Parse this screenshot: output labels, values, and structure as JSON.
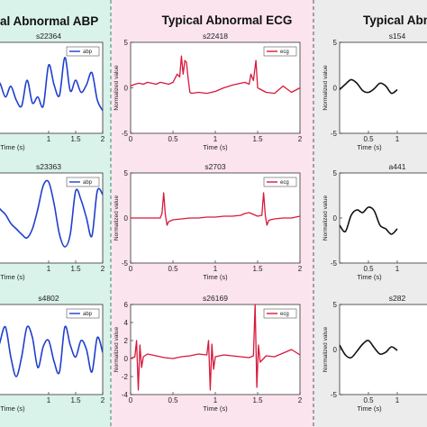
{
  "chart_data": [
    {
      "type": "line",
      "column": "abp",
      "column_title": "al Abnormal ABP",
      "title": "s22364",
      "xlabel": "Time (s)",
      "ylabel": "",
      "legend": "abp",
      "legend_position": "top-right",
      "xlim": [
        0,
        2
      ],
      "ylim": [
        -3,
        3
      ],
      "xticks": [
        "1",
        "1.5",
        "2"
      ],
      "yticks": [],
      "color": "#1f3fce",
      "series": [
        {
          "x": [
            0.0,
            0.1,
            0.2,
            0.3,
            0.4,
            0.5,
            0.6,
            0.7,
            0.8,
            0.9,
            1.0,
            1.1,
            1.2,
            1.3,
            1.4,
            1.5,
            1.6,
            1.7,
            1.8,
            1.9,
            2.0
          ],
          "y": [
            0.5,
            0.3,
            -0.6,
            0.1,
            -0.8,
            -1.2,
            0.5,
            -1.0,
            -0.6,
            -1.2,
            1.5,
            0.2,
            -0.5,
            2.0,
            -0.2,
            0.5,
            -0.3,
            0.2,
            1.0,
            -0.8,
            -1.5
          ]
        }
      ]
    },
    {
      "type": "line",
      "column": "abp",
      "title": "s23363",
      "xlabel": "Time (s)",
      "ylabel": "",
      "legend": "abp",
      "legend_position": "top-right",
      "xlim": [
        0,
        2
      ],
      "ylim": [
        -2.5,
        2.5
      ],
      "xticks": [
        "1",
        "1.5",
        "2"
      ],
      "yticks": [],
      "color": "#1f3fce",
      "series": [
        {
          "x": [
            0.0,
            0.1,
            0.2,
            0.3,
            0.4,
            0.5,
            0.6,
            0.7,
            0.8,
            0.9,
            1.0,
            1.1,
            1.2,
            1.3,
            1.4,
            1.5,
            1.6,
            1.7,
            1.8,
            1.9,
            2.0
          ],
          "y": [
            1.0,
            0.5,
            0.2,
            -0.3,
            -0.6,
            -0.9,
            -1.1,
            -0.6,
            0.5,
            1.8,
            2.0,
            0.8,
            -0.9,
            -1.6,
            -0.9,
            1.5,
            1.0,
            0.0,
            -1.0,
            1.5,
            1.3
          ]
        }
      ]
    },
    {
      "type": "line",
      "column": "abp",
      "title": "s4802",
      "xlabel": "Time (s)",
      "ylabel": "",
      "legend": "abp",
      "legend_position": "top-right",
      "xlim": [
        0,
        2
      ],
      "ylim": [
        -3,
        3
      ],
      "xticks": [
        "1",
        "1.5",
        "2"
      ],
      "yticks": [],
      "color": "#1f3fce",
      "series": [
        {
          "x": [
            0.0,
            0.1,
            0.2,
            0.3,
            0.4,
            0.5,
            0.6,
            0.7,
            0.8,
            0.9,
            1.0,
            1.1,
            1.2,
            1.3,
            1.4,
            1.5,
            1.6,
            1.7,
            1.8,
            1.9,
            2.0
          ],
          "y": [
            -1.0,
            0.5,
            1.5,
            -0.5,
            -1.8,
            -0.5,
            1.5,
            0.8,
            -1.2,
            0.2,
            0.6,
            -0.8,
            -1.5,
            1.5,
            0.3,
            -0.5,
            0.6,
            0.0,
            -1.5,
            0.8,
            -0.2
          ]
        }
      ]
    },
    {
      "type": "line",
      "column": "ecg",
      "column_title": "Typical Abnormal ECG",
      "title": "s22418",
      "xlabel": "Time (s)",
      "ylabel": "Normalized value",
      "legend": "ecg",
      "legend_position": "top-right",
      "xlim": [
        0,
        2
      ],
      "ylim": [
        -5,
        5
      ],
      "xticks": [
        "0",
        "0.5",
        "1",
        "1.5",
        "2"
      ],
      "yticks": [
        "-5",
        "0",
        "5"
      ],
      "color": "#d8183a",
      "series": [
        {
          "x": [
            0.0,
            0.05,
            0.1,
            0.15,
            0.2,
            0.25,
            0.3,
            0.35,
            0.4,
            0.45,
            0.5,
            0.55,
            0.58,
            0.6,
            0.62,
            0.64,
            0.66,
            0.68,
            0.7,
            0.72,
            0.8,
            0.9,
            1.0,
            1.1,
            1.2,
            1.3,
            1.35,
            1.4,
            1.42,
            1.45,
            1.48,
            1.5,
            1.6,
            1.7,
            1.8,
            1.9,
            2.0
          ],
          "y": [
            0.2,
            0.4,
            0.5,
            0.4,
            0.6,
            0.5,
            0.4,
            0.6,
            0.5,
            0.4,
            0.6,
            1.5,
            1.2,
            3.5,
            1.5,
            3.0,
            2.8,
            1.0,
            -0.5,
            -0.6,
            -0.5,
            -0.6,
            -0.4,
            0.0,
            0.3,
            0.5,
            0.6,
            0.4,
            1.5,
            0.8,
            3.0,
            0.0,
            -0.5,
            -0.6,
            0.2,
            -0.5,
            0.0
          ]
        }
      ]
    },
    {
      "type": "line",
      "column": "ecg",
      "title": "s2703",
      "xlabel": "Time (s)",
      "ylabel": "Normalized value",
      "legend": "ecg",
      "legend_position": "top-right",
      "xlim": [
        0,
        2
      ],
      "ylim": [
        -5,
        5
      ],
      "xticks": [
        "0",
        "0.5",
        "1",
        "1.5",
        "2"
      ],
      "yticks": [
        "-5",
        "0",
        "5"
      ],
      "color": "#d8183a",
      "series": [
        {
          "x": [
            0.0,
            0.2,
            0.35,
            0.37,
            0.39,
            0.41,
            0.43,
            0.45,
            0.5,
            0.6,
            0.7,
            0.8,
            0.9,
            1.0,
            1.1,
            1.2,
            1.3,
            1.35,
            1.4,
            1.45,
            1.5,
            1.55,
            1.57,
            1.59,
            1.61,
            1.63,
            1.65,
            1.7,
            1.8,
            1.9,
            2.0
          ],
          "y": [
            0.0,
            0.0,
            0.0,
            0.5,
            2.8,
            0.4,
            -0.8,
            -0.4,
            -0.2,
            -0.1,
            0.0,
            0.0,
            0.1,
            0.1,
            0.2,
            0.2,
            0.3,
            0.5,
            0.6,
            0.4,
            0.2,
            0.3,
            2.8,
            0.3,
            -0.8,
            -0.3,
            -0.2,
            -0.1,
            0.0,
            0.0,
            0.2
          ]
        }
      ]
    },
    {
      "type": "line",
      "column": "ecg",
      "title": "s26169",
      "xlabel": "Time (s)",
      "ylabel": "Normalized value",
      "legend": "ecg",
      "legend_position": "top-right",
      "xlim": [
        0,
        2
      ],
      "ylim": [
        -4,
        6
      ],
      "xticks": [
        "0",
        "0.5",
        "1",
        "1.5",
        "2"
      ],
      "yticks": [
        "-4",
        "-2",
        "0",
        "2",
        "4",
        "6"
      ],
      "color": "#d8183a",
      "series": [
        {
          "x": [
            0.0,
            0.05,
            0.07,
            0.09,
            0.11,
            0.13,
            0.15,
            0.2,
            0.3,
            0.4,
            0.5,
            0.6,
            0.7,
            0.8,
            0.9,
            0.92,
            0.94,
            0.96,
            0.98,
            1.0,
            1.1,
            1.2,
            1.3,
            1.4,
            1.45,
            1.47,
            1.49,
            1.51,
            1.53,
            1.6,
            1.7,
            1.8,
            1.9,
            2.0
          ],
          "y": [
            0.0,
            0.2,
            2.0,
            -3.5,
            1.5,
            -1.0,
            0.2,
            0.5,
            0.3,
            0.1,
            0.0,
            0.2,
            0.3,
            0.5,
            0.4,
            2.0,
            -3.5,
            1.6,
            -1.2,
            0.2,
            0.4,
            0.3,
            0.2,
            0.1,
            0.3,
            6.0,
            -3.2,
            1.5,
            -0.4,
            0.3,
            0.2,
            0.6,
            1.0,
            0.4
          ]
        }
      ]
    },
    {
      "type": "line",
      "column": "third",
      "column_title": "Typical Abno",
      "title": "s154",
      "xlabel": "Time (s)",
      "ylabel": "Normalized value",
      "xlim": [
        0,
        2
      ],
      "ylim": [
        -5,
        5
      ],
      "xticks": [
        "0.5",
        "1"
      ],
      "yticks": [
        "-5",
        "0",
        "5"
      ],
      "color": "#111111",
      "series": [
        {
          "x": [
            0.0,
            0.1,
            0.2,
            0.3,
            0.4,
            0.5,
            0.6,
            0.7,
            0.8,
            0.9,
            1.0
          ],
          "y": [
            -0.2,
            0.4,
            0.9,
            0.5,
            -0.3,
            -0.5,
            -0.1,
            0.5,
            0.2,
            -0.6,
            -0.2
          ]
        }
      ]
    },
    {
      "type": "line",
      "column": "third",
      "title": "a441",
      "xlabel": "Time (s)",
      "ylabel": "Normalized value",
      "xlim": [
        0,
        2
      ],
      "ylim": [
        -5,
        5
      ],
      "xticks": [
        "0.5",
        "1"
      ],
      "yticks": [
        "-5",
        "0",
        "5"
      ],
      "color": "#111111",
      "series": [
        {
          "x": [
            0.0,
            0.1,
            0.2,
            0.3,
            0.4,
            0.5,
            0.6,
            0.7,
            0.8,
            0.9,
            1.0
          ],
          "y": [
            -0.8,
            -1.5,
            0.3,
            0.9,
            0.6,
            1.2,
            0.8,
            -0.8,
            -1.2,
            -1.8,
            -1.2
          ]
        }
      ]
    },
    {
      "type": "line",
      "column": "third",
      "title": "s282",
      "xlabel": "Time (s)",
      "ylabel": "Normalized value",
      "xlim": [
        0,
        2
      ],
      "ylim": [
        -5,
        5
      ],
      "xticks": [
        "0.5",
        "1"
      ],
      "yticks": [
        "-5",
        "0",
        "5"
      ],
      "color": "#111111",
      "series": [
        {
          "x": [
            0.0,
            0.1,
            0.2,
            0.3,
            0.4,
            0.5,
            0.6,
            0.7,
            0.8,
            0.9,
            1.0
          ],
          "y": [
            0.5,
            -0.6,
            -0.9,
            -0.2,
            0.6,
            1.0,
            0.2,
            -0.5,
            -0.3,
            0.3,
            -0.1
          ]
        }
      ]
    }
  ]
}
